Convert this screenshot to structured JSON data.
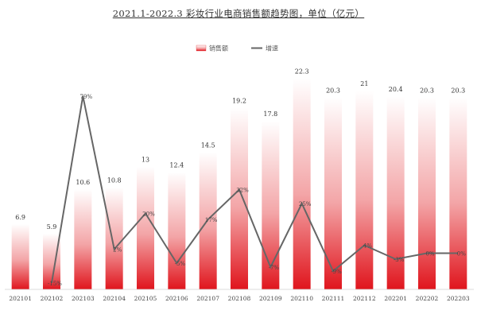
{
  "title": "2021.1-2022.3 彩妆行业电商销售额趋势图，单位（亿元）",
  "colors": {
    "bar_top": "#ffffff",
    "bar_mid": "#f3a5a7",
    "bar_bottom": "#e0151d",
    "line": "#666666"
  },
  "chart_data": {
    "type": "bar",
    "categories": [
      "202101",
      "202102",
      "202103",
      "202104",
      "202105",
      "202106",
      "202107",
      "202108",
      "202109",
      "202110",
      "202111",
      "202112",
      "202201",
      "202202",
      "202203"
    ],
    "series": [
      {
        "name": "销售额",
        "type": "bar",
        "values": [
          6.9,
          5.9,
          10.6,
          10.8,
          13,
          12.4,
          14.5,
          19.2,
          17.8,
          22.3,
          20.3,
          21,
          20.4,
          20.3,
          20.3
        ],
        "labels": [
          "6.9",
          "5.9",
          "10.6",
          "10.8",
          "13",
          "12.4",
          "14.5",
          "19.2",
          "17.8",
          "22.3",
          "20.3",
          "21",
          "20.4",
          "20.3",
          "20.3"
        ]
      },
      {
        "name": "增速",
        "type": "line",
        "values": [
          null,
          -15,
          79,
          2,
          20,
          -5,
          17,
          32,
          -7,
          25,
          -9,
          4,
          -3,
          0,
          0
        ],
        "labels": [
          "",
          "-15%",
          "79%",
          "2%",
          "20%",
          "-5%",
          "17%",
          "32%",
          "-7%",
          "25%",
          "-9%",
          "4%",
          "-3%",
          "0%",
          "0%"
        ]
      }
    ],
    "ylim_bar": [
      0,
      24
    ],
    "ylim_line": [
      -20,
      85
    ],
    "legend_position": "top-center",
    "grid": false
  }
}
